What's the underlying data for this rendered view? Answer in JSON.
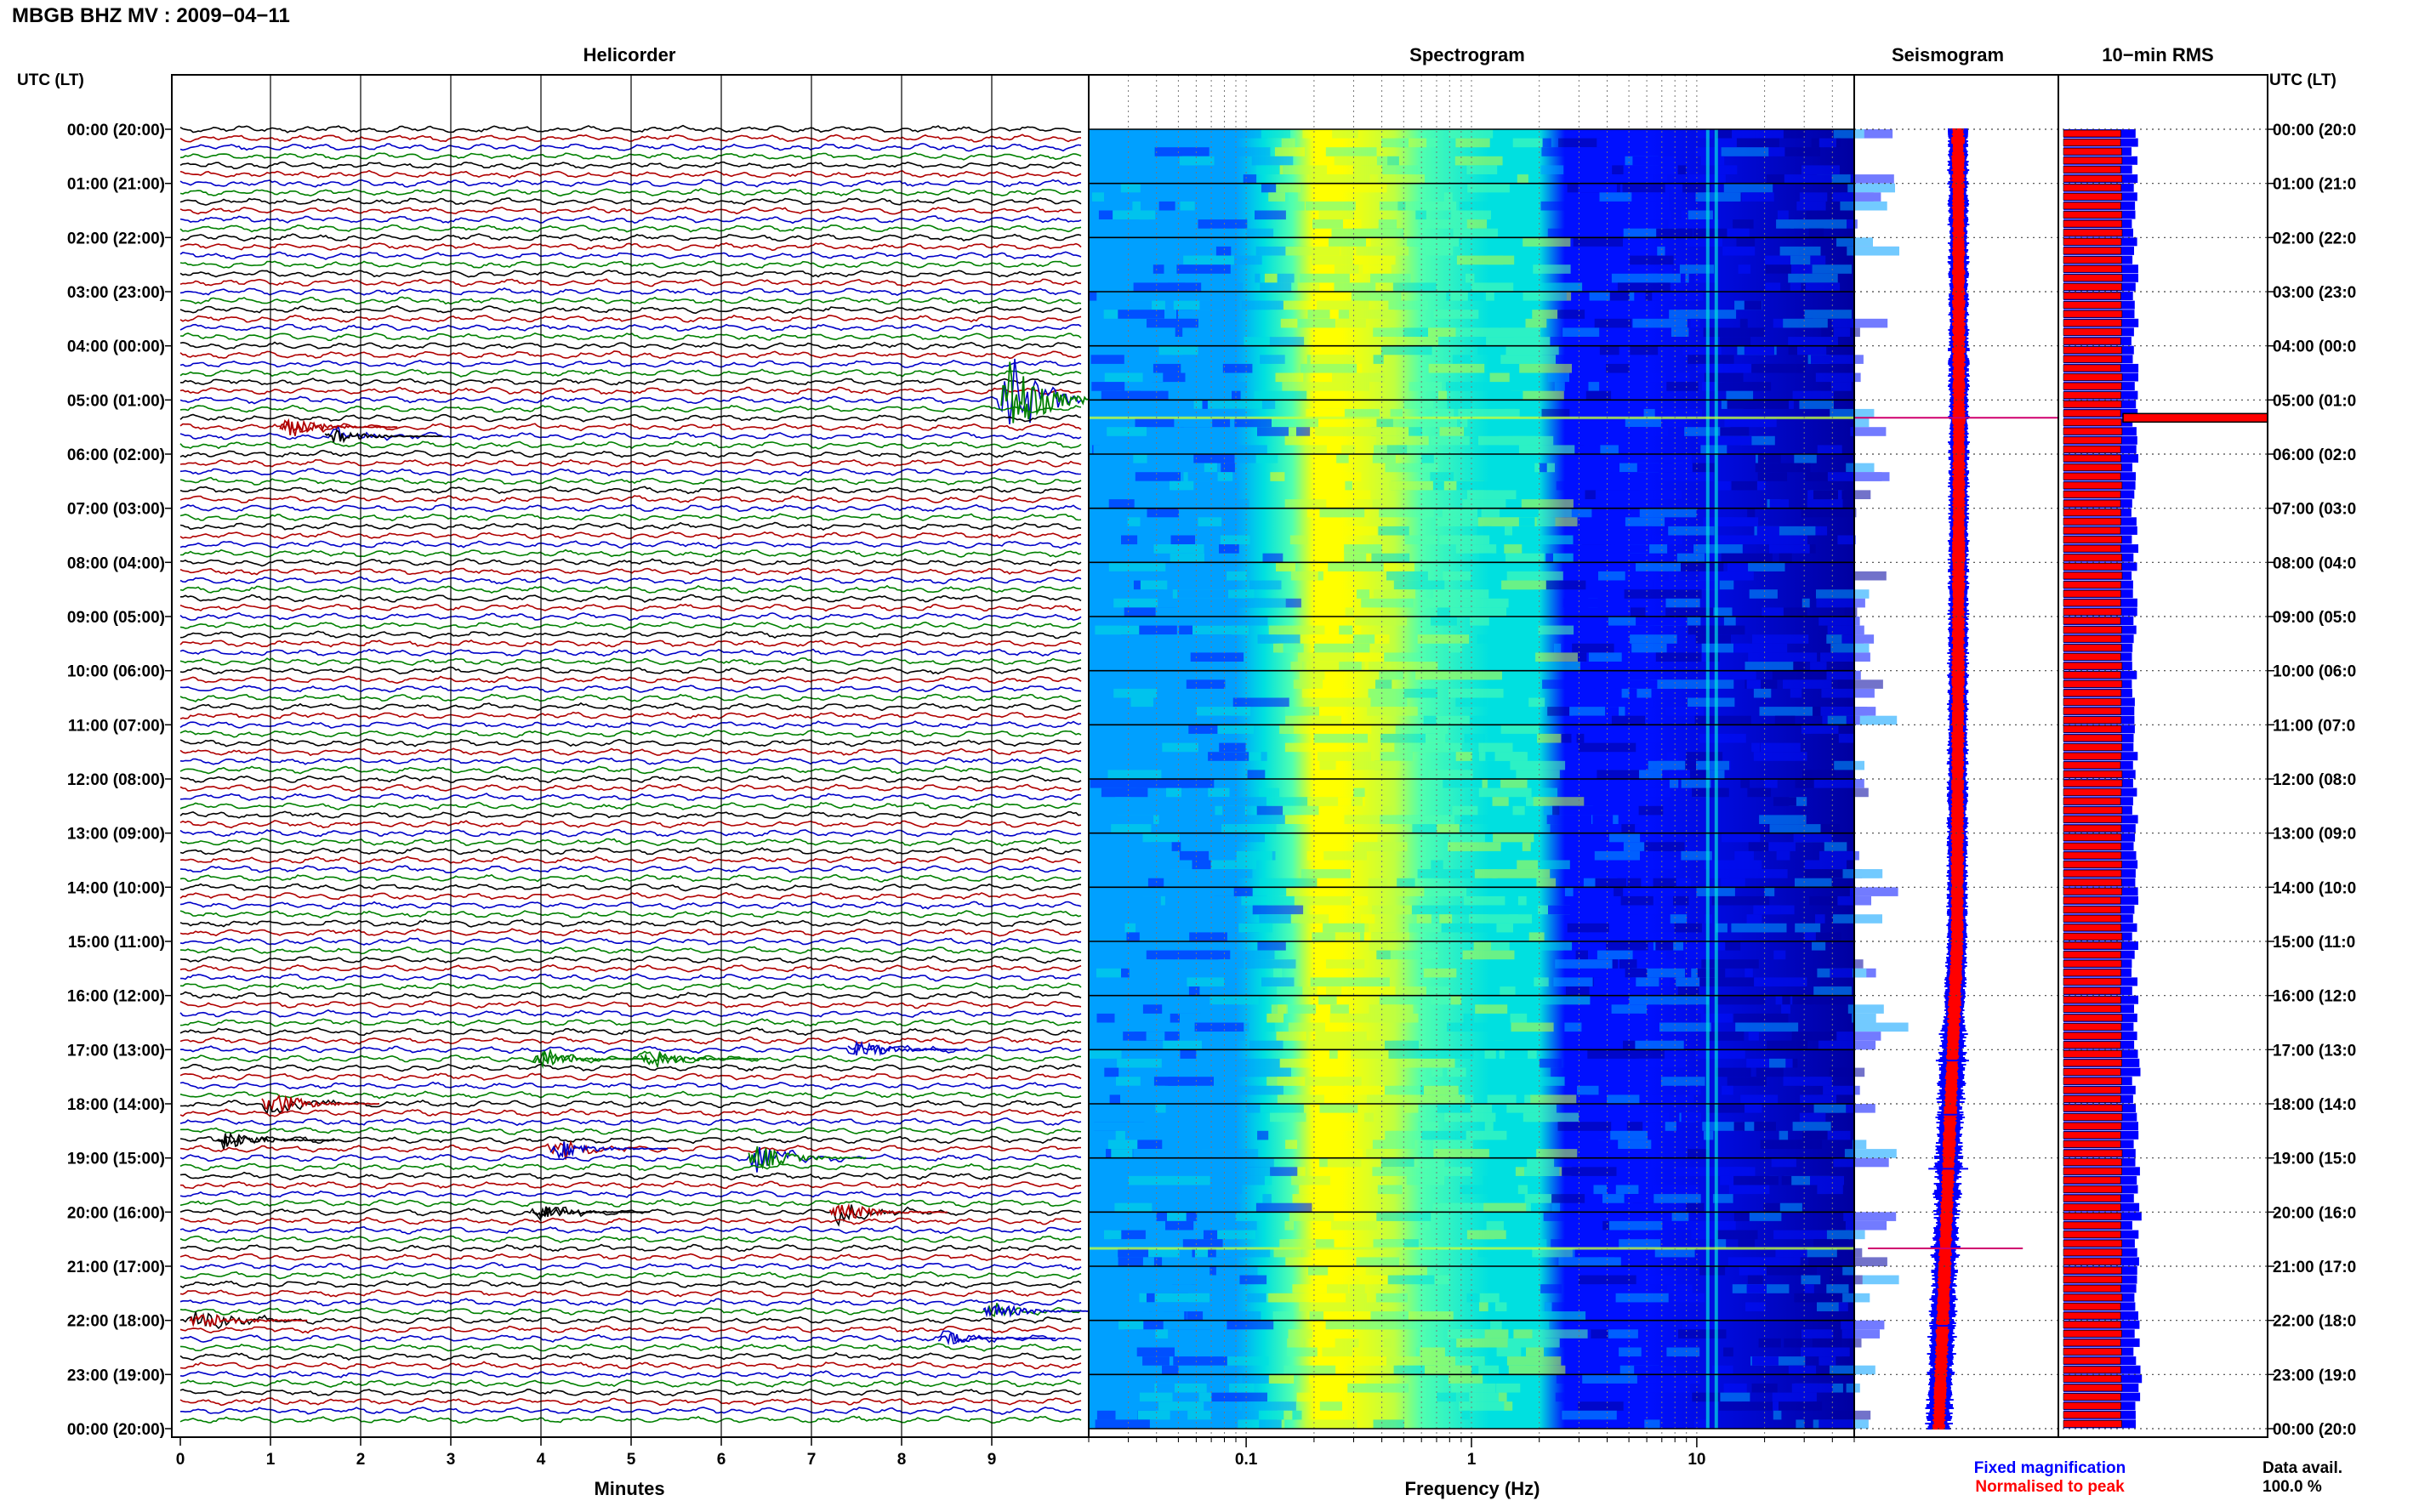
{
  "page_title": "MBGB BHZ MV : 2009−04−11",
  "panels": {
    "helicorder": "Helicorder",
    "spectrogram": "Spectrogram",
    "seismogram": "Seismogram",
    "rms": "10−min RMS"
  },
  "time_axis": {
    "left_header": "UTC (LT)",
    "right_header": "UTC (LT)",
    "labels": [
      "00:00 (20:00)",
      "01:00 (21:00)",
      "02:00 (22:00)",
      "03:00 (23:00)",
      "04:00 (00:00)",
      "05:00 (01:00)",
      "06:00 (02:00)",
      "07:00 (03:00)",
      "08:00 (04:00)",
      "09:00 (05:00)",
      "10:00 (06:00)",
      "11:00 (07:00)",
      "12:00 (08:00)",
      "13:00 (09:00)",
      "14:00 (10:00)",
      "15:00 (11:00)",
      "16:00 (12:00)",
      "17:00 (13:00)",
      "18:00 (14:00)",
      "19:00 (15:00)",
      "20:00 (16:00)",
      "21:00 (17:00)",
      "22:00 (18:00)",
      "23:00 (19:00)",
      "00:00 (20:00)"
    ],
    "right_labels": [
      "00:00 (20:0",
      "01:00 (21:0",
      "02:00 (22:0",
      "03:00 (23:0",
      "04:00 (00:0",
      "05:00 (01:0",
      "06:00 (02:0",
      "07:00 (03:0",
      "08:00 (04:0",
      "09:00 (05:0",
      "10:00 (06:0",
      "11:00 (07:0",
      "12:00 (08:0",
      "13:00 (09:0",
      "14:00 (10:0",
      "15:00 (11:0",
      "16:00 (12:0",
      "17:00 (13:0",
      "18:00 (14:0",
      "19:00 (15:0",
      "20:00 (16:0",
      "21:00 (17:0",
      "22:00 (18:0",
      "23:00 (19:0",
      "00:00 (20:0"
    ]
  },
  "chart_data": [
    {
      "type": "line",
      "panel": "Helicorder",
      "xlabel": "Minutes",
      "x_ticks": [
        "0",
        "1",
        "2",
        "3",
        "4",
        "5",
        "6",
        "7",
        "8",
        "9"
      ],
      "xlim": [
        0,
        10
      ],
      "lines_per_hour": 6,
      "line_count": 144,
      "trace_colors": [
        "#000000",
        "#b00000",
        "#0000c8",
        "#008000"
      ],
      "events": [
        {
          "hour": 5.0,
          "minute": 9.2,
          "strength": 10,
          "color": "#008000"
        },
        {
          "hour": 5.5,
          "minute": 1.2,
          "strength": 2,
          "color": "#b00000"
        },
        {
          "hour": 5.67,
          "minute": 1.7,
          "strength": 1.5,
          "color": "#000000"
        },
        {
          "hour": 17.0,
          "minute": 7.5,
          "strength": 2,
          "color": "#0000c8"
        },
        {
          "hour": 17.17,
          "minute": 4.0,
          "strength": 2,
          "color": "#008000"
        },
        {
          "hour": 17.17,
          "minute": 5.2,
          "strength": 2,
          "color": "#008000"
        },
        {
          "hour": 18.0,
          "minute": 1.0,
          "strength": 3,
          "color": "#b00000"
        },
        {
          "hour": 18.67,
          "minute": 0.5,
          "strength": 2,
          "color": "#000000"
        },
        {
          "hour": 19.0,
          "minute": 6.4,
          "strength": 3,
          "color": "#008000"
        },
        {
          "hour": 18.83,
          "minute": 4.2,
          "strength": 2,
          "color": "#0000c8"
        },
        {
          "hour": 20.0,
          "minute": 7.3,
          "strength": 2.5,
          "color": "#b00000"
        },
        {
          "hour": 20.0,
          "minute": 4.0,
          "strength": 1.5,
          "color": "#000000"
        },
        {
          "hour": 21.83,
          "minute": 9.0,
          "strength": 2,
          "color": "#0000c8"
        },
        {
          "hour": 22.0,
          "minute": 0.2,
          "strength": 2.5,
          "color": "#b00000"
        },
        {
          "hour": 22.33,
          "minute": 8.5,
          "strength": 1.5,
          "color": "#0000c8"
        }
      ]
    },
    {
      "type": "heatmap",
      "panel": "Spectrogram",
      "xlabel": "Frequency (Hz)",
      "x_scale": "log",
      "xlim": [
        0.02,
        50
      ],
      "x_ticks": [
        0.1,
        1,
        10
      ],
      "x_tick_labels": [
        "0.1",
        "1",
        "10"
      ],
      "peak_band_hz": [
        0.2,
        0.35
      ],
      "colormap": [
        "#0000a0",
        "#0010ff",
        "#00a0ff",
        "#00e0e0",
        "#50ffb0",
        "#c0ff40",
        "#ffff00"
      ],
      "lines_hz": [
        11.0,
        12.0
      ]
    },
    {
      "type": "line",
      "panel": "Seismogram",
      "description_series": [
        "Fixed magnification",
        "Normalised to peak"
      ],
      "series_colors": [
        "#0000ff",
        "#ff0000"
      ],
      "spikes": [
        {
          "hour": 5.33,
          "scale": 1.0
        },
        {
          "hour": 20.67,
          "scale": 0.7
        },
        {
          "hour": 17.2,
          "scale": 0.15
        },
        {
          "hour": 18.2,
          "scale": 0.12
        },
        {
          "hour": 19.2,
          "scale": 0.18
        },
        {
          "hour": 22.1,
          "scale": 0.12
        }
      ]
    },
    {
      "type": "bar",
      "panel": "10−min RMS",
      "orientation": "horizontal",
      "bins_per_hour": 6,
      "relative_level_blue": 0.3,
      "relative_level_red": 0.27,
      "peak": {
        "hour": 5.33,
        "level": 1.0
      }
    }
  ],
  "legend": {
    "fixed": "Fixed magnification",
    "normalised": "Normalised to peak",
    "fixed_color": "#0000ff",
    "normalised_color": "#ff0000"
  },
  "data_avail": {
    "label": "Data avail.",
    "value": "100.0 %"
  }
}
